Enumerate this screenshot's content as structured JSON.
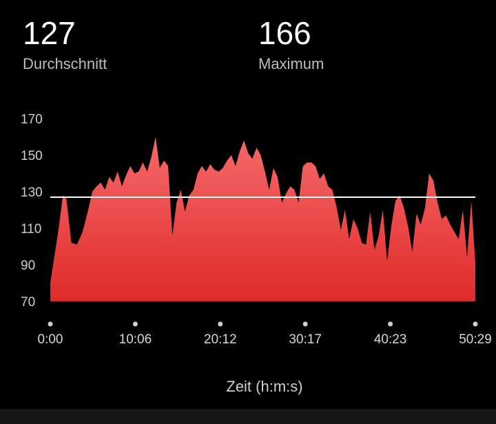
{
  "stats": {
    "average": {
      "value": "127",
      "label": "Durchschnitt"
    },
    "maximum": {
      "value": "166",
      "label": "Maximum"
    }
  },
  "chart_data": {
    "type": "area",
    "xlabel": "Zeit (h:m:s)",
    "ylabel": "",
    "x_ticks": [
      "0:00",
      "10:06",
      "20:12",
      "30:17",
      "40:23",
      "50:29"
    ],
    "y_ticks": [
      70,
      90,
      110,
      130,
      150,
      170
    ],
    "ylim": [
      70,
      170
    ],
    "x_range_seconds": [
      0,
      3029
    ],
    "reference_line": {
      "value": 127
    },
    "grid": false,
    "colors": {
      "fill_top": "#f56a6a",
      "fill_bottom": "#e02a2a",
      "reference": "#ffffff",
      "tick_dot": "#d0d0d0"
    },
    "series": [
      {
        "x": [
          0,
          30,
          60,
          90,
          115,
          150,
          190,
          230,
          270,
          300,
          330,
          360,
          390,
          420,
          450,
          480,
          510,
          540,
          570,
          600,
          630,
          660,
          690,
          720,
          750,
          780,
          810,
          840,
          870,
          900,
          930,
          960,
          990,
          1020,
          1050,
          1080,
          1110,
          1140,
          1170,
          1200,
          1230,
          1260,
          1290,
          1320,
          1350,
          1380,
          1410,
          1440,
          1470,
          1500,
          1530,
          1560,
          1590,
          1620,
          1650,
          1680,
          1710,
          1740,
          1770,
          1800,
          1830,
          1860,
          1890,
          1920,
          1950,
          1980,
          2010,
          2040,
          2070,
          2100,
          2130,
          2160,
          2190,
          2220,
          2250,
          2280,
          2310,
          2340,
          2370,
          2400,
          2430,
          2460,
          2490,
          2520,
          2550,
          2580,
          2610,
          2640,
          2670,
          2700,
          2730,
          2760,
          2790,
          2820,
          2850,
          2880,
          2910,
          2940,
          2970,
          3000,
          3029
        ],
        "y": [
          80,
          95,
          110,
          128,
          126,
          102,
          101,
          108,
          120,
          130,
          133,
          135,
          131,
          138,
          135,
          141,
          133,
          139,
          144,
          140,
          141,
          146,
          141,
          149,
          160,
          143,
          147,
          144,
          106,
          124,
          131,
          119,
          128,
          131,
          140,
          144,
          141,
          145,
          142,
          141,
          143,
          147,
          150,
          144,
          152,
          158,
          151,
          148,
          154,
          150,
          141,
          131,
          143,
          138,
          124,
          129,
          133,
          131,
          124,
          144,
          146,
          146,
          144,
          137,
          140,
          133,
          131,
          122,
          109,
          120,
          104,
          115,
          110,
          102,
          101,
          119,
          98,
          106,
          120,
          92,
          111,
          125,
          128,
          121,
          111,
          97,
          118,
          112,
          121,
          140,
          136,
          124,
          115,
          117,
          112,
          108,
          104,
          120,
          94,
          125,
          91
        ]
      }
    ]
  }
}
